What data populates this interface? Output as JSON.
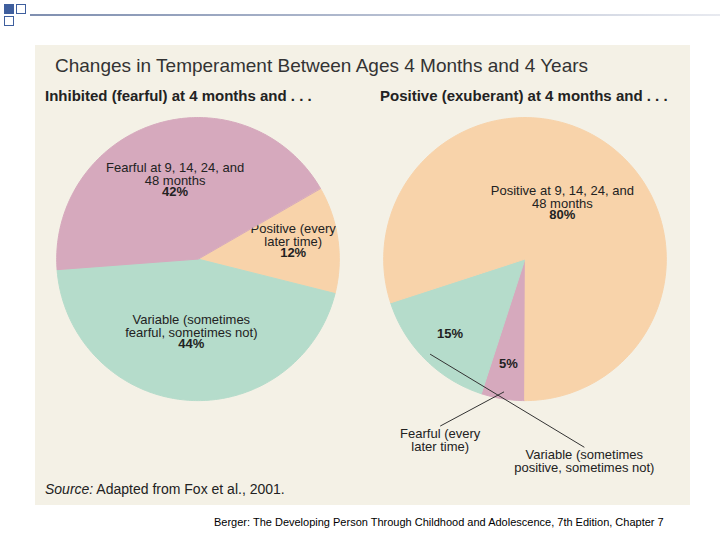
{
  "title": "Changes in Temperament Between Ages 4 Months and 4 Years",
  "source": "Source: Adapted from Fox et al., 2001.",
  "footer": "Berger: The Developing Person Through Childhood and Adolescence, 7th Edition, Chapter 7",
  "chart_data": [
    {
      "type": "pie",
      "title": "Inhibited (fearful) at 4 months and . . .",
      "categories": [
        "Positive (every later time)",
        "Variable (sometimes fearful, sometimes not)",
        "Fearful at 9, 14, 24, and 48 months"
      ],
      "values": [
        12,
        44,
        42
      ],
      "value_labels": [
        "12%",
        "44%",
        "42%"
      ],
      "colors": [
        "#f8d3aa",
        "#b5dccb",
        "#d6a9bd"
      ],
      "data_labels": true
    },
    {
      "type": "pie",
      "title": "Positive (exuberant) at 4 months and . . .",
      "categories": [
        "Fearful (every later time)",
        "Variable (sometimes positive, sometimes not)",
        "Positive at 9, 14, 24, and 48 months"
      ],
      "values": [
        5,
        15,
        80
      ],
      "value_labels": [
        "5%",
        "15%",
        "80%"
      ],
      "colors": [
        "#d6a9bd",
        "#b5dccb",
        "#f8d3aa"
      ],
      "data_labels": true
    }
  ]
}
